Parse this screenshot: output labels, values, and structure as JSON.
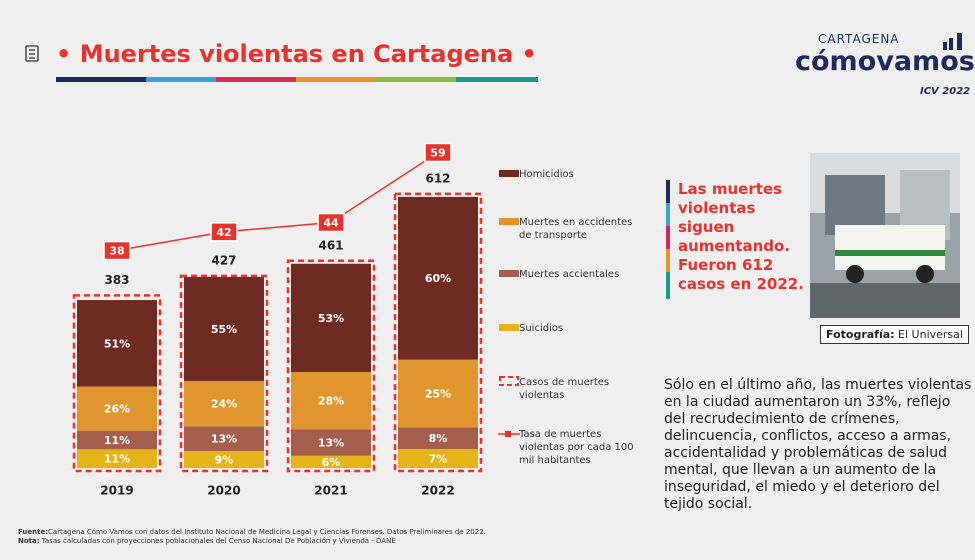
{
  "header": {
    "title": "• Muertes violentas en Cartagena •"
  },
  "logo": {
    "top": "CARTAGENA",
    "main": "cómovamos",
    "sub": "ICV 2022"
  },
  "chart_data": {
    "type": "stacked_bar",
    "categories": [
      "2019",
      "2020",
      "2021",
      "2022"
    ],
    "series": [
      {
        "name": "Homicidios",
        "color": "#6e2b24",
        "values": [
          51,
          55,
          53,
          60
        ],
        "value_labels": [
          "51%",
          "55%",
          "53%",
          "60%"
        ]
      },
      {
        "name": "Muertes en accidentes de transporte",
        "color": "#e0952f",
        "values": [
          26,
          24,
          28,
          25
        ],
        "value_labels": [
          "26%",
          "24%",
          "28%",
          "25%"
        ]
      },
      {
        "name": "Muertes accientales",
        "color": "#a45f4c",
        "values": [
          11,
          13,
          13,
          8
        ],
        "value_labels": [
          "11%",
          "13%",
          "13%",
          "8%"
        ]
      },
      {
        "name": "Suicidios",
        "color": "#e6b318",
        "values": [
          11,
          9,
          6,
          7
        ],
        "value_labels": [
          "11%",
          "9%",
          "6%",
          "7%"
        ]
      }
    ],
    "totals": {
      "name": "Casos de muertes violentas",
      "color": "#e8322e",
      "values": [
        383,
        427,
        461,
        612
      ]
    },
    "rate": {
      "name": "Tasa de muertes violentas por cada 100 mil habitantes",
      "color": "#e8322e",
      "values": [
        38,
        42,
        44,
        59
      ]
    }
  },
  "quote": "Las muertes violentas siguen aumentando. Fueron 612 casos en 2022.",
  "photo": {
    "credit_label": "Fotografía:",
    "credit": " El Universal"
  },
  "paragraph": "Sólo en el último año, las muertes violentas en la ciudad aumentaron un 33%, reflejo del recrudecimiento de crímenes, delincuencia, conflictos, acceso a armas, accidentalidad y problemáticas de salud mental, que llevan a un aumento de la inseguridad, el miedo y el deterioro del tejido social.",
  "footnote": {
    "source_label": "Fuente:",
    "source": "Cartagena Cómo Vamos con datos del Instituto Nacional de Medicina Legal y Ciencias Forenses. Datos Preliminares de 2022.",
    "note_label": "Nota:",
    "note": " Tasas calculadas con proyecciones poblacionales del Censo Nacional De Población y Vivienda - DANE"
  }
}
